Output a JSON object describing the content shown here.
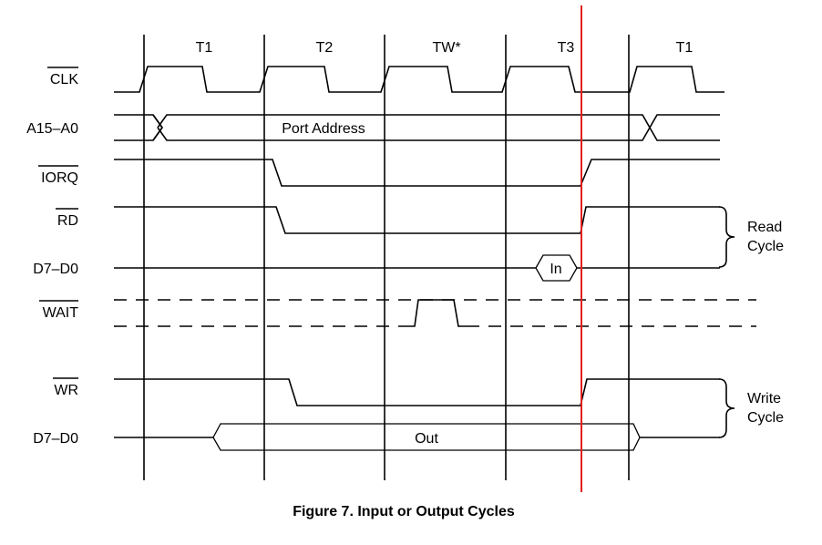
{
  "phases": [
    "T1",
    "T2",
    "TW*",
    "T3",
    "T1"
  ],
  "signals": {
    "clk": "CLK",
    "address": "A15–A0",
    "iorq": "IORQ",
    "rd": "RD",
    "data_read": "D7–D0",
    "wait": "WAIT",
    "wr": "WR",
    "data_write": "D7–D0"
  },
  "bus_labels": {
    "port_address": "Port Address",
    "in": "In",
    "out": "Out"
  },
  "brackets": {
    "read_line1": "Read",
    "read_line2": "Cycle",
    "write_line1": "Write",
    "write_line2": "Cycle"
  },
  "caption": "Figure 7. Input or Output Cycles",
  "colors": {
    "marker_line": "#e0201e",
    "waveform": "#000000"
  }
}
